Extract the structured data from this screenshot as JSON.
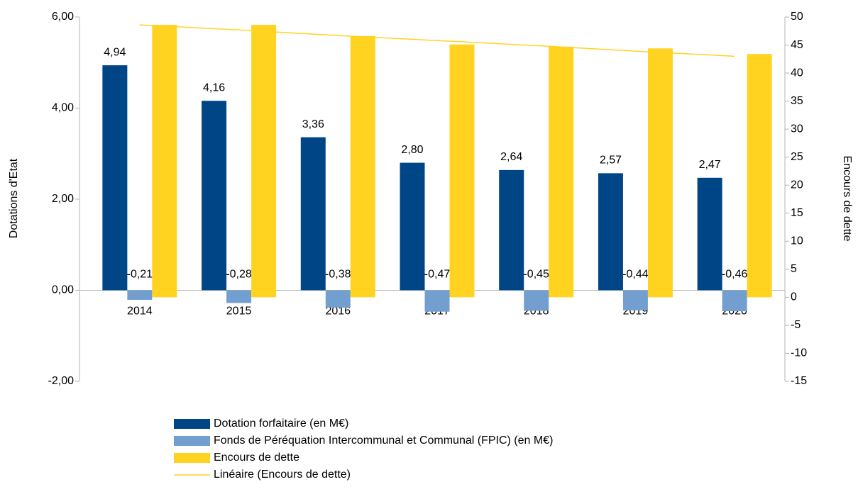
{
  "chart_data": {
    "type": "bar",
    "categories": [
      "2014",
      "2015",
      "2016",
      "2017",
      "2018",
      "2019",
      "2020"
    ],
    "y_label": "Dotations d'Etat",
    "y2_label": "Encours de dette",
    "ylim": [
      -2,
      6
    ],
    "yticks": [
      {
        "value": -2,
        "label": "-2,00"
      },
      {
        "value": 0,
        "label": "0,00"
      },
      {
        "value": 2,
        "label": "2,00"
      },
      {
        "value": 4,
        "label": "4,00"
      },
      {
        "value": 6,
        "label": "6,00"
      }
    ],
    "y2lim": [
      -15,
      50
    ],
    "y2ticks": [
      -15,
      -10,
      -5,
      0,
      5,
      10,
      15,
      20,
      25,
      30,
      35,
      40,
      45,
      50
    ],
    "grid": false,
    "legend": "bottom",
    "series": [
      {
        "name": "Dotation forfaitaire (en M€)",
        "color": "#004586",
        "type": "bar",
        "values": [
          4.94,
          4.16,
          3.36,
          2.8,
          2.64,
          2.57,
          2.47
        ],
        "value_labels": [
          "4,94",
          "4,16",
          "3,36",
          "2,80",
          "2,64",
          "2,57",
          "2,47"
        ]
      },
      {
        "name": "Fonds de Péréquation Intercommunal et Communal (FPIC) (en M€)",
        "color": "#729fcf",
        "type": "bar",
        "values": [
          -0.21,
          -0.28,
          -0.38,
          -0.47,
          -0.45,
          -0.44,
          -0.46
        ],
        "value_labels": [
          "-0,21",
          "-0,28",
          "-0,38",
          "-0,47",
          "-0,45",
          "-0,44",
          "-0,46"
        ]
      },
      {
        "name": "Encours de dette",
        "color": "#ffd320",
        "type": "bar",
        "axis": "y2",
        "values": [
          48.6,
          48.6,
          46.6,
          45.1,
          44.7,
          44.4,
          43.4
        ]
      },
      {
        "name": "Linéaire (Encours de dette)",
        "color": "#ffd320",
        "type": "line",
        "axis": "y2",
        "values": [
          48.6,
          47.7,
          46.7,
          45.8,
          44.9,
          43.9,
          43.0
        ]
      }
    ]
  }
}
